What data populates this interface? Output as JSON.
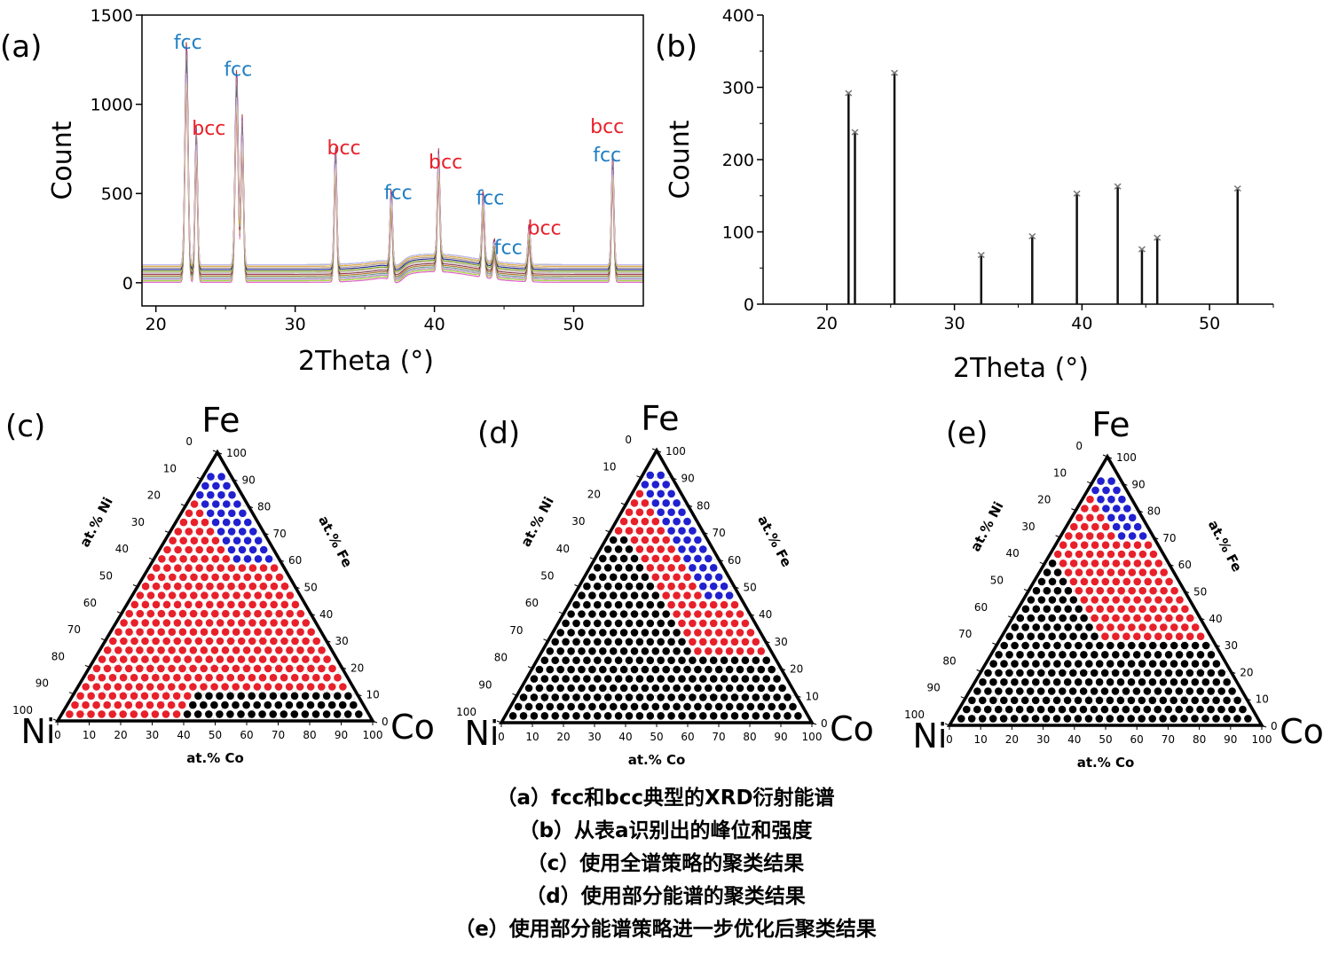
{
  "chart_data": [
    {
      "panel": "(a)",
      "type": "line",
      "xlabel": "2Theta (°)",
      "ylabel": "Count",
      "xlim": [
        19,
        55
      ],
      "ylim": [
        -130,
        1500
      ],
      "xticks": [
        20,
        30,
        40,
        50
      ],
      "yticks": [
        0,
        500,
        1000,
        1500
      ],
      "peaks": [
        {
          "x": 22.2,
          "y": 1280
        },
        {
          "x": 22.9,
          "y": 790
        },
        {
          "x": 25.8,
          "y": 1120
        },
        {
          "x": 26.2,
          "y": 850
        },
        {
          "x": 32.9,
          "y": 680
        },
        {
          "x": 36.9,
          "y": 430
        },
        {
          "x": 40.3,
          "y": 600
        },
        {
          "x": 43.5,
          "y": 400
        },
        {
          "x": 44.3,
          "y": 130
        },
        {
          "x": 46.8,
          "y": 230
        },
        {
          "x": 52.8,
          "y": 640
        }
      ],
      "annotations": [
        {
          "text": "fcc",
          "class": "fcc",
          "x": 22.3,
          "y": 1310
        },
        {
          "text": "fcc",
          "class": "fcc",
          "x": 25.9,
          "y": 1160
        },
        {
          "text": "bcc",
          "class": "bcc",
          "x": 23.8,
          "y": 830
        },
        {
          "text": "bcc",
          "class": "bcc",
          "x": 33.5,
          "y": 720
        },
        {
          "text": "fcc",
          "class": "fcc",
          "x": 37.4,
          "y": 470
        },
        {
          "text": "bcc",
          "class": "bcc",
          "x": 40.8,
          "y": 640
        },
        {
          "text": "fcc",
          "class": "fcc",
          "x": 44.0,
          "y": 440
        },
        {
          "text": "fcc",
          "class": "fcc",
          "x": 45.3,
          "y": 160
        },
        {
          "text": "bcc",
          "class": "bcc",
          "x": 47.9,
          "y": 270
        },
        {
          "text": "bcc",
          "class": "bcc",
          "x": 52.4,
          "y": 840
        },
        {
          "text": "fcc",
          "class": "fcc",
          "x": 52.4,
          "y": 680
        }
      ],
      "colors": {
        "fcc": "#1f7ec4",
        "bcc": "#e8202a"
      }
    },
    {
      "panel": "(b)",
      "type": "bar",
      "xlabel": "2Theta (°)",
      "ylabel": "Count",
      "xlim": [
        15,
        55
      ],
      "ylim": [
        0,
        400
      ],
      "xticks": [
        20,
        30,
        40,
        50
      ],
      "yticks": [
        0,
        100,
        200,
        300,
        400
      ],
      "x": [
        21.7,
        22.2,
        25.3,
        32.1,
        36.1,
        39.6,
        42.8,
        44.7,
        45.9,
        52.2
      ],
      "values": [
        292,
        238,
        320,
        68,
        94,
        153,
        163,
        76,
        92,
        160
      ]
    },
    {
      "panel": "(c)",
      "type": "scatter",
      "ternary": true,
      "vertices": {
        "top": "Fe",
        "left": "Ni",
        "right": "Co"
      },
      "axis_labels": {
        "left": "at.% Ni",
        "right": "at.% Fe",
        "bottom": "at.% Co"
      },
      "ticks": [
        0,
        10,
        20,
        30,
        40,
        50,
        60,
        70,
        80,
        90,
        100
      ],
      "cluster_colors": {
        "red": "#e8202a",
        "blue": "#2020d0",
        "black": "#000000"
      }
    },
    {
      "panel": "(d)",
      "type": "scatter",
      "ternary": true,
      "vertices": {
        "top": "Fe",
        "left": "Ni",
        "right": "Co"
      },
      "axis_labels": {
        "left": "at.% Ni",
        "right": "at.% Fe",
        "bottom": "at.% Co"
      },
      "ticks": [
        0,
        10,
        20,
        30,
        40,
        50,
        60,
        70,
        80,
        90,
        100
      ],
      "cluster_colors": {
        "red": "#e8202a",
        "blue": "#2020d0",
        "black": "#000000"
      }
    },
    {
      "panel": "(e)",
      "type": "scatter",
      "ternary": true,
      "vertices": {
        "top": "Fe",
        "left": "Ni",
        "right": "Co"
      },
      "axis_labels": {
        "left": "at.% Ni",
        "right": "at.% Fe",
        "bottom": "at.% Co"
      },
      "ticks": [
        0,
        10,
        20,
        30,
        40,
        50,
        60,
        70,
        80,
        90,
        100
      ],
      "cluster_colors": {
        "red": "#e8202a",
        "blue": "#2020d0",
        "black": "#000000"
      }
    }
  ],
  "captions": [
    "（a）fcc和bcc典型的XRD衍射能谱",
    "（b）从表a识别出的峰位和强度",
    "（c）使用全谱策略的聚类结果",
    "（d）使用部分能谱的聚类结果",
    "（e）使用部分能谱策略进一步优化后聚类结果"
  ]
}
